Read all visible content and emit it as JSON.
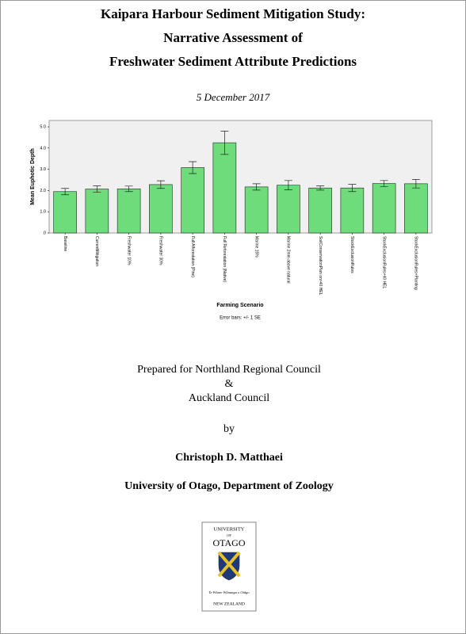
{
  "header": {
    "title_lines": [
      "Kaipara Harbour Sediment Mitigation Study:",
      "Narrative Assessment of",
      "Freshwater Sediment Attribute Predictions"
    ],
    "date": "5 December 2017"
  },
  "chart_data": {
    "type": "bar",
    "y_label": "Mean Euphotic Depth",
    "x_label": "Farming Scenario",
    "note": "Error bars: +/- 1 SE",
    "categories": [
      "Baseline",
      "CurrentMitigation",
      "Freshwater 10%",
      "Freshwater 30%",
      "Full Afforestation (Pine)",
      "Full Reforestation (Native)",
      "Marine 15%",
      "Marine 2mm above natural",
      "SoilConservationPlan on>40 HEL",
      "StockExclusionRules",
      "StockExclusionRules+40 HEL",
      "StockExclusionRules+Planting"
    ],
    "values": [
      1.95,
      2.07,
      2.08,
      2.28,
      3.08,
      4.25,
      2.17,
      2.25,
      2.12,
      2.12,
      2.33,
      2.32
    ],
    "errors": [
      0.15,
      0.15,
      0.13,
      0.18,
      0.28,
      0.55,
      0.15,
      0.22,
      0.1,
      0.17,
      0.14,
      0.2
    ],
    "color": "#6edc7b",
    "ylim": [
      0,
      5.3
    ],
    "yticks": [
      {
        "value": 0,
        "label": ".0"
      },
      {
        "value": 1,
        "label": "1.0"
      },
      {
        "value": 2,
        "label": "2.0"
      },
      {
        "value": 3,
        "label": "3.0"
      },
      {
        "value": 4,
        "label": "4.0"
      },
      {
        "value": 5,
        "label": "5.0"
      }
    ]
  },
  "prepared": {
    "lines": [
      "Prepared for Northland Regional Council",
      "&",
      "Auckland Council"
    ],
    "by": "by",
    "author": "Christoph D. Matthaei",
    "affiliation": "University of Otago, Department of Zoology"
  },
  "logo": {
    "top": "UNIVERSITY",
    "of": "OF",
    "name": "OTAGO",
    "motto": "Te Whare Wānanga o Otāgo",
    "country": "NEW ZEALAND"
  }
}
